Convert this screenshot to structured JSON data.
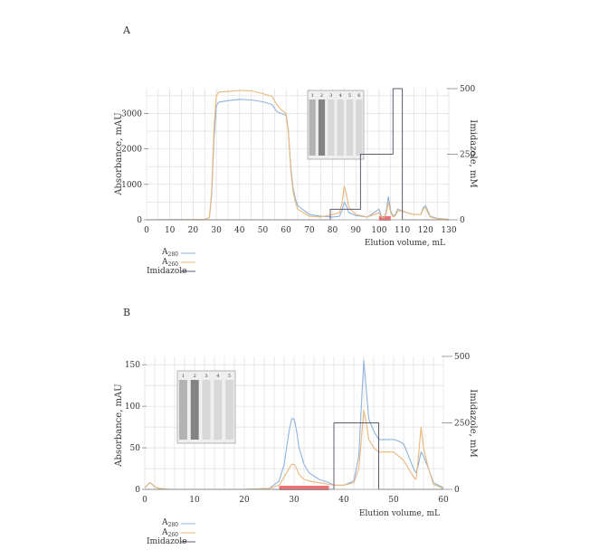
{
  "chart_data": [
    {
      "panel_label": "A",
      "type": "line",
      "xlabel": "Elution volume, mL",
      "ylabel": "Absorbance, mAU",
      "y2label": "Imidazole, mM",
      "xlim": [
        0,
        130
      ],
      "ylim": [
        0,
        3700
      ],
      "y2lim": [
        0,
        500
      ],
      "x_ticks": [
        0,
        10,
        20,
        30,
        40,
        50,
        60,
        70,
        80,
        90,
        100,
        110,
        120,
        130
      ],
      "y_ticks": [
        0,
        1000,
        2000,
        3000
      ],
      "y2_ticks": [
        0,
        250,
        500
      ],
      "grid": true,
      "legend_position": "bottom-left",
      "colors": {
        "A280": "#8fb3dd",
        "A260": "#e9b77a",
        "Imidazole": "#5c5c70",
        "highlight": "#e8585a"
      },
      "series": [
        {
          "name": "A280",
          "axis": "left",
          "x": [
            0,
            25,
            27,
            28,
            29,
            30,
            31,
            35,
            40,
            45,
            50,
            54,
            56,
            58,
            60,
            61,
            62,
            63,
            64,
            65,
            70,
            75,
            80,
            83,
            84,
            85,
            86,
            87,
            90,
            95,
            100,
            101,
            102,
            103,
            104,
            105,
            106,
            107,
            108,
            110,
            112,
            115,
            118,
            119,
            120,
            121,
            122,
            125,
            130
          ],
          "y": [
            0,
            10,
            60,
            700,
            2300,
            3200,
            3320,
            3360,
            3400,
            3380,
            3330,
            3250,
            3050,
            3000,
            2950,
            2500,
            1500,
            900,
            600,
            400,
            150,
            100,
            80,
            100,
            250,
            500,
            380,
            200,
            120,
            80,
            300,
            100,
            60,
            200,
            650,
            250,
            100,
            150,
            300,
            250,
            200,
            150,
            150,
            350,
            400,
            250,
            100,
            40,
            10
          ]
        },
        {
          "name": "A260",
          "axis": "left",
          "x": [
            0,
            25,
            27,
            28,
            29,
            30,
            31,
            35,
            40,
            45,
            50,
            54,
            56,
            58,
            60,
            61,
            62,
            63,
            64,
            65,
            70,
            75,
            80,
            83,
            84,
            85,
            86,
            87,
            90,
            95,
            100,
            101,
            102,
            103,
            104,
            105,
            106,
            107,
            108,
            110,
            112,
            115,
            118,
            119,
            120,
            121,
            122,
            125,
            130
          ],
          "y": [
            0,
            10,
            60,
            800,
            2600,
            3500,
            3600,
            3620,
            3650,
            3640,
            3560,
            3480,
            3250,
            3100,
            3000,
            2500,
            1400,
            800,
            500,
            300,
            100,
            80,
            150,
            200,
            450,
            950,
            700,
            350,
            150,
            80,
            200,
            80,
            50,
            150,
            500,
            200,
            80,
            120,
            250,
            250,
            200,
            150,
            150,
            300,
            350,
            200,
            80,
            30,
            10
          ]
        },
        {
          "name": "Imidazole",
          "axis": "right",
          "x": [
            0,
            65,
            68,
            70,
            79,
            79,
            92,
            92,
            96,
            96,
            106,
            106,
            110,
            110,
            130
          ],
          "y": [
            0,
            0,
            0,
            0,
            0,
            40,
            40,
            250,
            250,
            250,
            250,
            500,
            500,
            0,
            0
          ]
        }
      ],
      "highlight_range": [
        100,
        105
      ],
      "inset_lane_labels": [
        "1",
        "2",
        "3",
        "4",
        "5",
        "6"
      ]
    },
    {
      "panel_label": "B",
      "type": "line",
      "xlabel": "Elution volume, mL",
      "ylabel": "Absorbance, mAU",
      "y2label": "Imidazole, mM",
      "xlim": [
        0,
        60
      ],
      "ylim": [
        0,
        160
      ],
      "y2lim": [
        0,
        500
      ],
      "x_ticks": [
        0,
        10,
        20,
        30,
        40,
        50,
        60
      ],
      "y_ticks": [
        0,
        50,
        100,
        150
      ],
      "y2_ticks": [
        0,
        250,
        500
      ],
      "grid": true,
      "legend_position": "bottom-left",
      "colors": {
        "A280": "#8fb3dd",
        "A260": "#e9b77a",
        "Imidazole": "#5c5c70",
        "highlight": "#e8585a"
      },
      "series": [
        {
          "name": "A280",
          "axis": "left",
          "x": [
            0,
            0.5,
            1,
            1.5,
            2,
            3,
            5,
            10,
            20,
            25,
            27,
            28,
            29,
            29.5,
            30,
            30.5,
            31,
            32,
            33,
            35,
            37,
            38,
            40,
            42,
            43,
            43.5,
            44,
            44.5,
            45,
            46,
            47,
            48,
            50,
            51,
            52,
            53,
            54,
            54.5,
            55,
            55.5,
            56,
            57,
            58,
            60
          ],
          "y": [
            2,
            5,
            8,
            6,
            3,
            1,
            0,
            0,
            0,
            1,
            10,
            30,
            70,
            85,
            85,
            70,
            50,
            30,
            20,
            12,
            8,
            5,
            5,
            10,
            40,
            100,
            155,
            120,
            85,
            70,
            60,
            60,
            60,
            58,
            55,
            40,
            25,
            20,
            30,
            45,
            40,
            25,
            8,
            2
          ]
        },
        {
          "name": "A260",
          "axis": "left",
          "x": [
            0,
            0.5,
            1,
            1.5,
            2,
            3,
            5,
            10,
            20,
            25,
            27,
            28,
            29,
            29.5,
            30,
            30.5,
            31,
            32,
            33,
            35,
            37,
            38,
            40,
            42,
            43,
            43.5,
            44,
            44.5,
            45,
            46,
            47,
            48,
            50,
            51,
            52,
            53,
            54,
            54.5,
            55,
            55.5,
            56,
            57,
            58,
            60
          ],
          "y": [
            2,
            5,
            8,
            6,
            3,
            1,
            0,
            0,
            0,
            1,
            5,
            15,
            25,
            30,
            30,
            25,
            18,
            12,
            10,
            8,
            6,
            5,
            5,
            8,
            25,
            60,
            95,
            80,
            60,
            50,
            45,
            45,
            45,
            40,
            35,
            25,
            15,
            12,
            40,
            75,
            50,
            25,
            6,
            1
          ]
        },
        {
          "name": "Imidazole",
          "axis": "right",
          "x": [
            0,
            38,
            38,
            47,
            47,
            60
          ],
          "y": [
            0,
            0,
            250,
            250,
            0,
            0
          ]
        }
      ],
      "highlight_range": [
        27,
        37
      ],
      "inset_lane_labels": [
        "1",
        "2",
        "3",
        "4",
        "5"
      ]
    }
  ],
  "legend": {
    "a280": {
      "base": "A",
      "sub": "280"
    },
    "a260": {
      "base": "A",
      "sub": "260"
    },
    "imidazole": "Imidazole"
  }
}
